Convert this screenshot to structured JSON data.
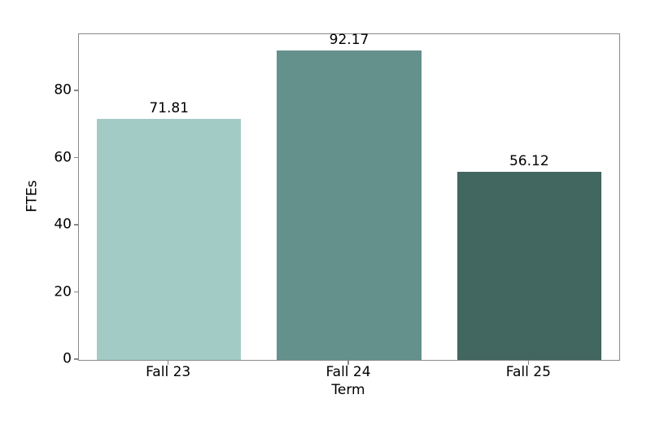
{
  "chart_data": {
    "type": "bar",
    "title": "",
    "categories": [
      "Fall 23",
      "Fall 24",
      "Fall 25"
    ],
    "values": [
      71.81,
      92.17,
      56.12
    ],
    "value_labels": [
      "71.81",
      "92.17",
      "56.12"
    ],
    "bar_colors": [
      "#a3cbc5",
      "#65918d",
      "#426660"
    ],
    "xlabel": "Term",
    "ylabel": "FTEs",
    "ylim": [
      0,
      97.02
    ],
    "yticks": [
      0,
      20,
      40,
      60,
      80
    ],
    "grid": false,
    "legend": "none",
    "bar_width_fraction": 0.8,
    "spine_color": "#888888",
    "text_color": "#000000",
    "background": "#ffffff"
  }
}
